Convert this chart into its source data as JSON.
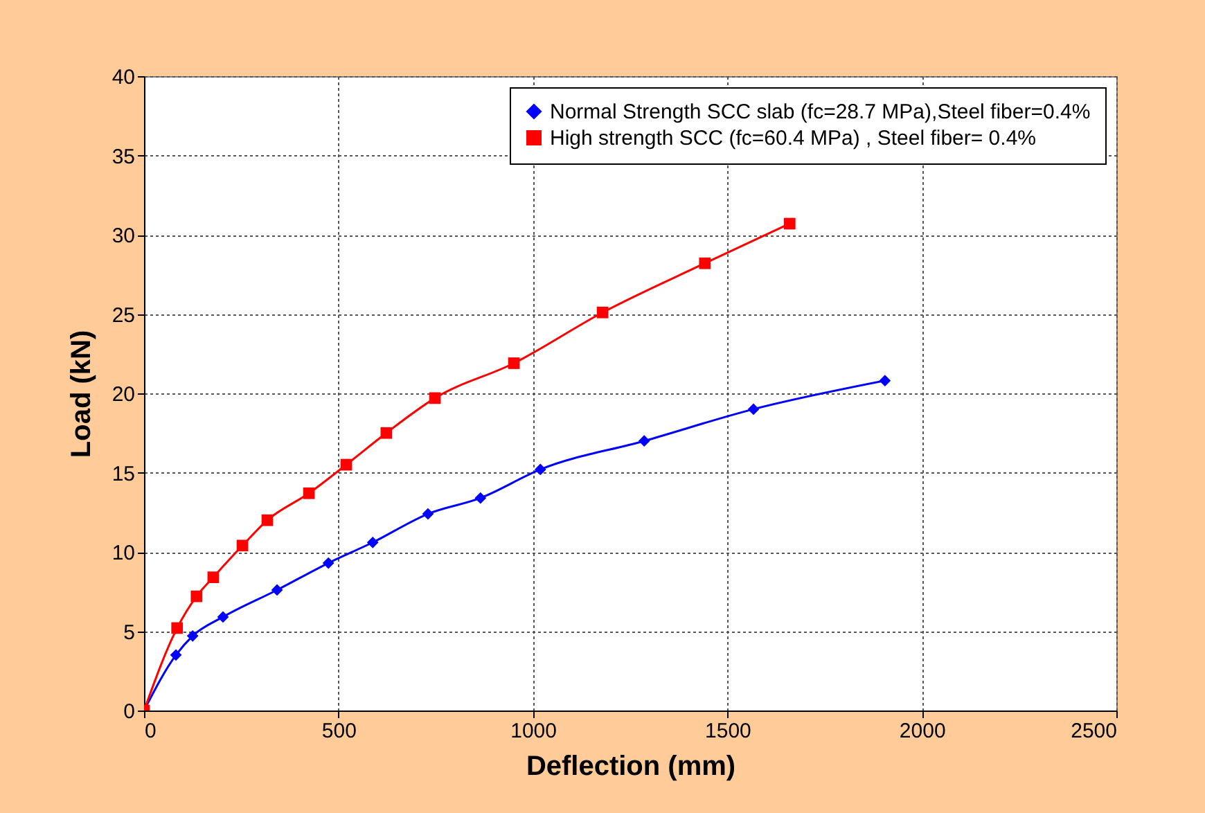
{
  "chart_data": {
    "type": "line",
    "xlabel": "Deflection (mm)",
    "ylabel": "Load (kN)",
    "xlim": [
      0,
      2500
    ],
    "xticks": [
      0,
      500,
      1000,
      1500,
      2000,
      2500
    ],
    "ylim": [
      0,
      40
    ],
    "yticks": [
      0,
      5,
      10,
      15,
      20,
      25,
      30,
      35,
      40
    ],
    "grid": true,
    "legend": "top right",
    "line_style": "solid",
    "series": [
      {
        "name": "Normal Strength SCC slab (fc=28.7 MPa),Steel fiber=0.4%",
        "color": "#0000ff",
        "marker": "diamond",
        "x": [
          0,
          82,
          125,
          203,
          342,
          474,
          588,
          730,
          865,
          1019,
          1286,
          1567,
          1905
        ],
        "values": [
          0,
          3.5,
          4.7,
          5.9,
          7.6,
          9.3,
          10.6,
          12.4,
          13.4,
          15.2,
          17.0,
          19.0,
          20.8
        ]
      },
      {
        "name": "High strength SCC (fc=60.4 MPa) , Steel fiber= 0.4%",
        "color": "#ff0000",
        "marker": "square",
        "x": [
          0,
          85,
          135,
          178,
          253,
          317,
          424,
          520,
          623,
          748,
          951,
          1179,
          1442,
          1660
        ],
        "values": [
          0,
          5.2,
          7.2,
          8.4,
          10.4,
          12.0,
          13.7,
          15.5,
          17.5,
          19.7,
          21.9,
          25.1,
          28.2,
          30.7
        ]
      }
    ]
  }
}
